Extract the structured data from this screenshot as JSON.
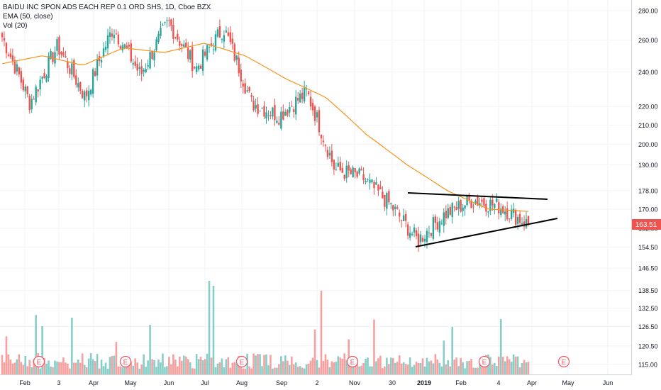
{
  "chart_data": {
    "type": "candlestick",
    "title": "BAIDU INC SPON ADS EACH REP 0.1 ORD SHS, 1D, Cboe BZX",
    "indicators": [
      "EMA (50, close)",
      "Vol (20)"
    ],
    "last_price_label": "163.51",
    "y_scale": "log",
    "ylim": [
      112,
      285
    ],
    "y_ticks": [
      "280.00",
      "260.00",
      "240.00",
      "220.00",
      "210.00",
      "200.00",
      "190.00",
      "178.00",
      "170.00",
      "162.00",
      "154.50",
      "146.50",
      "138.50",
      "132.50",
      "126.50",
      "120.50",
      "115.00"
    ],
    "x_ticks": [
      "Feb",
      "3",
      "Apr",
      "May",
      "Jun",
      "Jul",
      "Aug",
      "Sep",
      "2",
      "Nov",
      "30",
      "2019",
      "Feb",
      "4",
      "Apr",
      "May",
      "Jun"
    ],
    "earnings_marker": "E",
    "earnings_count": 6,
    "price_path_approx": [
      {
        "date": "Jan",
        "close": 262
      },
      {
        "date": "Feb",
        "close": 222
      },
      {
        "date": "Mar",
        "close": 256
      },
      {
        "date": "Apr",
        "close": 225
      },
      {
        "date": "May",
        "close": 268
      },
      {
        "date": "May",
        "close": 238
      },
      {
        "date": "Jun",
        "close": 272
      },
      {
        "date": "Jun",
        "close": 242
      },
      {
        "date": "Jul",
        "close": 268
      },
      {
        "date": "Aug",
        "close": 222
      },
      {
        "date": "Sep",
        "close": 215
      },
      {
        "date": "Oct",
        "close": 228
      },
      {
        "date": "Oct",
        "close": 188
      },
      {
        "date": "Nov",
        "close": 184
      },
      {
        "date": "Dec",
        "close": 172
      },
      {
        "date": "Dec",
        "close": 157
      },
      {
        "date": "Jan",
        "close": 168
      },
      {
        "date": "Feb",
        "close": 174
      },
      {
        "date": "Mar",
        "close": 171
      },
      {
        "date": "Apr",
        "close": 163.51
      }
    ],
    "ema_path_approx": [
      245,
      250,
      244,
      255,
      252,
      258,
      250,
      236,
      225,
      205,
      190,
      178,
      170,
      169
    ],
    "colors": {
      "up": "#26a69a",
      "down": "#ef5350",
      "ema": "#f7931a",
      "last_price_tag": "#ef5350",
      "trendline": "#000000"
    }
  }
}
